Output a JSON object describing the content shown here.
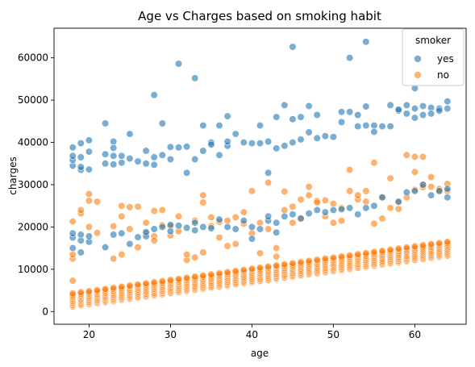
{
  "chart_data": {
    "type": "scatter",
    "title": "Age vs Charges based on smoking habit",
    "xlabel": "age",
    "ylabel": "charges",
    "xlim": [
      15.7,
      66.3
    ],
    "ylim": [
      -3000,
      67000
    ],
    "xticks": [
      20,
      30,
      40,
      50,
      60
    ],
    "yticks": [
      0,
      10000,
      20000,
      30000,
      40000,
      50000,
      60000
    ],
    "grid": false,
    "legend": {
      "title": "smoker",
      "placement": "top-right"
    },
    "series": [
      {
        "name": "yes",
        "color": "#1f77b4",
        "points": [
          [
            18,
            34500
          ],
          [
            18,
            35800
          ],
          [
            18,
            36800
          ],
          [
            18,
            38800
          ],
          [
            18,
            15000
          ],
          [
            18,
            17500
          ],
          [
            18,
            18500
          ],
          [
            19,
            33500
          ],
          [
            19,
            34200
          ],
          [
            19,
            36500
          ],
          [
            19,
            39800
          ],
          [
            19,
            14000
          ],
          [
            19,
            16800
          ],
          [
            19,
            18200
          ],
          [
            20,
            33600
          ],
          [
            20,
            37800
          ],
          [
            20,
            40500
          ],
          [
            20,
            16500
          ],
          [
            20,
            17800
          ],
          [
            22,
            35000
          ],
          [
            22,
            37200
          ],
          [
            22,
            44500
          ],
          [
            22,
            15200
          ],
          [
            23,
            34800
          ],
          [
            23,
            36800
          ],
          [
            23,
            38700
          ],
          [
            23,
            40200
          ],
          [
            23,
            18200
          ],
          [
            24,
            35200
          ],
          [
            24,
            36800
          ],
          [
            24,
            18500
          ],
          [
            25,
            36200
          ],
          [
            25,
            42000
          ],
          [
            25,
            16000
          ],
          [
            26,
            35500
          ],
          [
            26,
            17600
          ],
          [
            27,
            35000
          ],
          [
            27,
            38000
          ],
          [
            27,
            17800
          ],
          [
            27,
            18800
          ],
          [
            28,
            36500
          ],
          [
            28,
            34700
          ],
          [
            28,
            51200
          ],
          [
            28,
            19500
          ],
          [
            29,
            44500
          ],
          [
            29,
            37000
          ],
          [
            29,
            20000
          ],
          [
            30,
            38900
          ],
          [
            30,
            36000
          ],
          [
            30,
            19000
          ],
          [
            30,
            20500
          ],
          [
            31,
            58600
          ],
          [
            31,
            38800
          ],
          [
            31,
            20300
          ],
          [
            32,
            39000
          ],
          [
            32,
            32800
          ],
          [
            32,
            19800
          ],
          [
            33,
            55200
          ],
          [
            33,
            36000
          ],
          [
            33,
            19200
          ],
          [
            33,
            21000
          ],
          [
            34,
            44000
          ],
          [
            34,
            38000
          ],
          [
            34,
            20000
          ],
          [
            35,
            40000
          ],
          [
            35,
            39500
          ],
          [
            35,
            19700
          ],
          [
            36,
            37000
          ],
          [
            36,
            44000
          ],
          [
            36,
            21800
          ],
          [
            37,
            46200
          ],
          [
            37,
            39200
          ],
          [
            37,
            40200
          ],
          [
            37,
            20000
          ],
          [
            38,
            42000
          ],
          [
            38,
            19500
          ],
          [
            39,
            40000
          ],
          [
            39,
            21500
          ],
          [
            40,
            39800
          ],
          [
            40,
            17200
          ],
          [
            40,
            20000
          ],
          [
            41,
            39800
          ],
          [
            41,
            44000
          ],
          [
            41,
            19500
          ],
          [
            42,
            32800
          ],
          [
            42,
            40200
          ],
          [
            42,
            21500
          ],
          [
            42,
            22500
          ],
          [
            43,
            46000
          ],
          [
            43,
            38600
          ],
          [
            43,
            21000
          ],
          [
            43,
            18700
          ],
          [
            44,
            48800
          ],
          [
            44,
            39200
          ],
          [
            44,
            22500
          ],
          [
            45,
            62600
          ],
          [
            45,
            45500
          ],
          [
            45,
            40000
          ],
          [
            45,
            23000
          ],
          [
            46,
            46000
          ],
          [
            46,
            40700
          ],
          [
            46,
            22000
          ],
          [
            47,
            48600
          ],
          [
            47,
            42400
          ],
          [
            47,
            23200
          ],
          [
            48,
            46500
          ],
          [
            48,
            41000
          ],
          [
            48,
            24000
          ],
          [
            49,
            41500
          ],
          [
            49,
            23500
          ],
          [
            50,
            41300
          ],
          [
            50,
            24000
          ],
          [
            51,
            47200
          ],
          [
            51,
            44800
          ],
          [
            51,
            24200
          ],
          [
            52,
            60000
          ],
          [
            52,
            47200
          ],
          [
            52,
            24500
          ],
          [
            53,
            46500
          ],
          [
            53,
            43800
          ],
          [
            53,
            23000
          ],
          [
            54,
            63800
          ],
          [
            54,
            48500
          ],
          [
            54,
            44000
          ],
          [
            54,
            24500
          ],
          [
            55,
            44000
          ],
          [
            55,
            42500
          ],
          [
            55,
            25000
          ],
          [
            56,
            43800
          ],
          [
            56,
            27000
          ],
          [
            57,
            48800
          ],
          [
            57,
            43800
          ],
          [
            58,
            47500
          ],
          [
            58,
            47800
          ],
          [
            58,
            26000
          ],
          [
            59,
            48800
          ],
          [
            59,
            46800
          ],
          [
            59,
            28200
          ],
          [
            60,
            52800
          ],
          [
            60,
            48000
          ],
          [
            60,
            45800
          ],
          [
            60,
            28500
          ],
          [
            61,
            48600
          ],
          [
            61,
            46500
          ],
          [
            61,
            30000
          ],
          [
            62,
            48200
          ],
          [
            62,
            46800
          ],
          [
            62,
            27500
          ],
          [
            63,
            48000
          ],
          [
            63,
            47500
          ],
          [
            63,
            28500
          ],
          [
            64,
            49700
          ],
          [
            64,
            48000
          ],
          [
            64,
            27000
          ],
          [
            64,
            29000
          ]
        ]
      },
      {
        "name": "no",
        "color": "#ff7f0e",
        "band": {
          "x_from": 18,
          "x_to": 64,
          "low_start": 1200,
          "low_end": 13200,
          "high_start": 4300,
          "high_end": 16500,
          "points_per_age": 11
        },
        "points": [
          [
            18,
            21300
          ],
          [
            18,
            7300
          ],
          [
            18,
            12500
          ],
          [
            18,
            13500
          ],
          [
            19,
            23200
          ],
          [
            19,
            24000
          ],
          [
            20,
            27800
          ],
          [
            20,
            26200
          ],
          [
            20,
            20000
          ],
          [
            21,
            26000
          ],
          [
            21,
            18600
          ],
          [
            23,
            12500
          ],
          [
            23,
            20200
          ],
          [
            24,
            25000
          ],
          [
            24,
            22500
          ],
          [
            24,
            13500
          ],
          [
            25,
            24700
          ],
          [
            25,
            19500
          ],
          [
            26,
            24800
          ],
          [
            26,
            15200
          ],
          [
            27,
            21000
          ],
          [
            27,
            18500
          ],
          [
            28,
            23800
          ],
          [
            28,
            17800
          ],
          [
            28,
            16800
          ],
          [
            29,
            20400
          ],
          [
            29,
            24000
          ],
          [
            30,
            20200
          ],
          [
            30,
            18000
          ],
          [
            31,
            22500
          ],
          [
            31,
            19000
          ],
          [
            32,
            12200
          ],
          [
            32,
            13500
          ],
          [
            33,
            21500
          ],
          [
            33,
            12800
          ],
          [
            34,
            27500
          ],
          [
            34,
            25800
          ],
          [
            34,
            14000
          ],
          [
            35,
            22300
          ],
          [
            35,
            20200
          ],
          [
            36,
            21200
          ],
          [
            36,
            17500
          ],
          [
            37,
            21500
          ],
          [
            37,
            15500
          ],
          [
            38,
            22300
          ],
          [
            38,
            16000
          ],
          [
            39,
            20800
          ],
          [
            39,
            23500
          ],
          [
            40,
            28500
          ],
          [
            40,
            18500
          ],
          [
            41,
            13800
          ],
          [
            41,
            21000
          ],
          [
            42,
            30500
          ],
          [
            42,
            19500
          ],
          [
            43,
            15000
          ],
          [
            43,
            13000
          ],
          [
            44,
            28400
          ],
          [
            44,
            24000
          ],
          [
            45,
            24800
          ],
          [
            45,
            21000
          ],
          [
            46,
            26500
          ],
          [
            46,
            22000
          ],
          [
            47,
            29500
          ],
          [
            47,
            27500
          ],
          [
            48,
            26200
          ],
          [
            48,
            25800
          ],
          [
            49,
            26300
          ],
          [
            49,
            22500
          ],
          [
            50,
            25500
          ],
          [
            50,
            21000
          ],
          [
            51,
            24500
          ],
          [
            51,
            21500
          ],
          [
            52,
            33500
          ],
          [
            52,
            28500
          ],
          [
            53,
            26500
          ],
          [
            53,
            27500
          ],
          [
            54,
            28500
          ],
          [
            54,
            26000
          ],
          [
            55,
            35200
          ],
          [
            55,
            20800
          ],
          [
            56,
            22000
          ],
          [
            56,
            27000
          ],
          [
            57,
            31500
          ],
          [
            57,
            24500
          ],
          [
            58,
            24300
          ],
          [
            58,
            25800
          ],
          [
            59,
            37000
          ],
          [
            59,
            27000
          ],
          [
            60,
            36600
          ],
          [
            60,
            33000
          ],
          [
            60,
            28800
          ],
          [
            61,
            36600
          ],
          [
            61,
            30000
          ],
          [
            61,
            29400
          ],
          [
            62,
            31800
          ],
          [
            62,
            29500
          ],
          [
            63,
            29000
          ],
          [
            63,
            28500
          ],
          [
            64,
            30200
          ],
          [
            64,
            28500
          ]
        ]
      }
    ]
  }
}
